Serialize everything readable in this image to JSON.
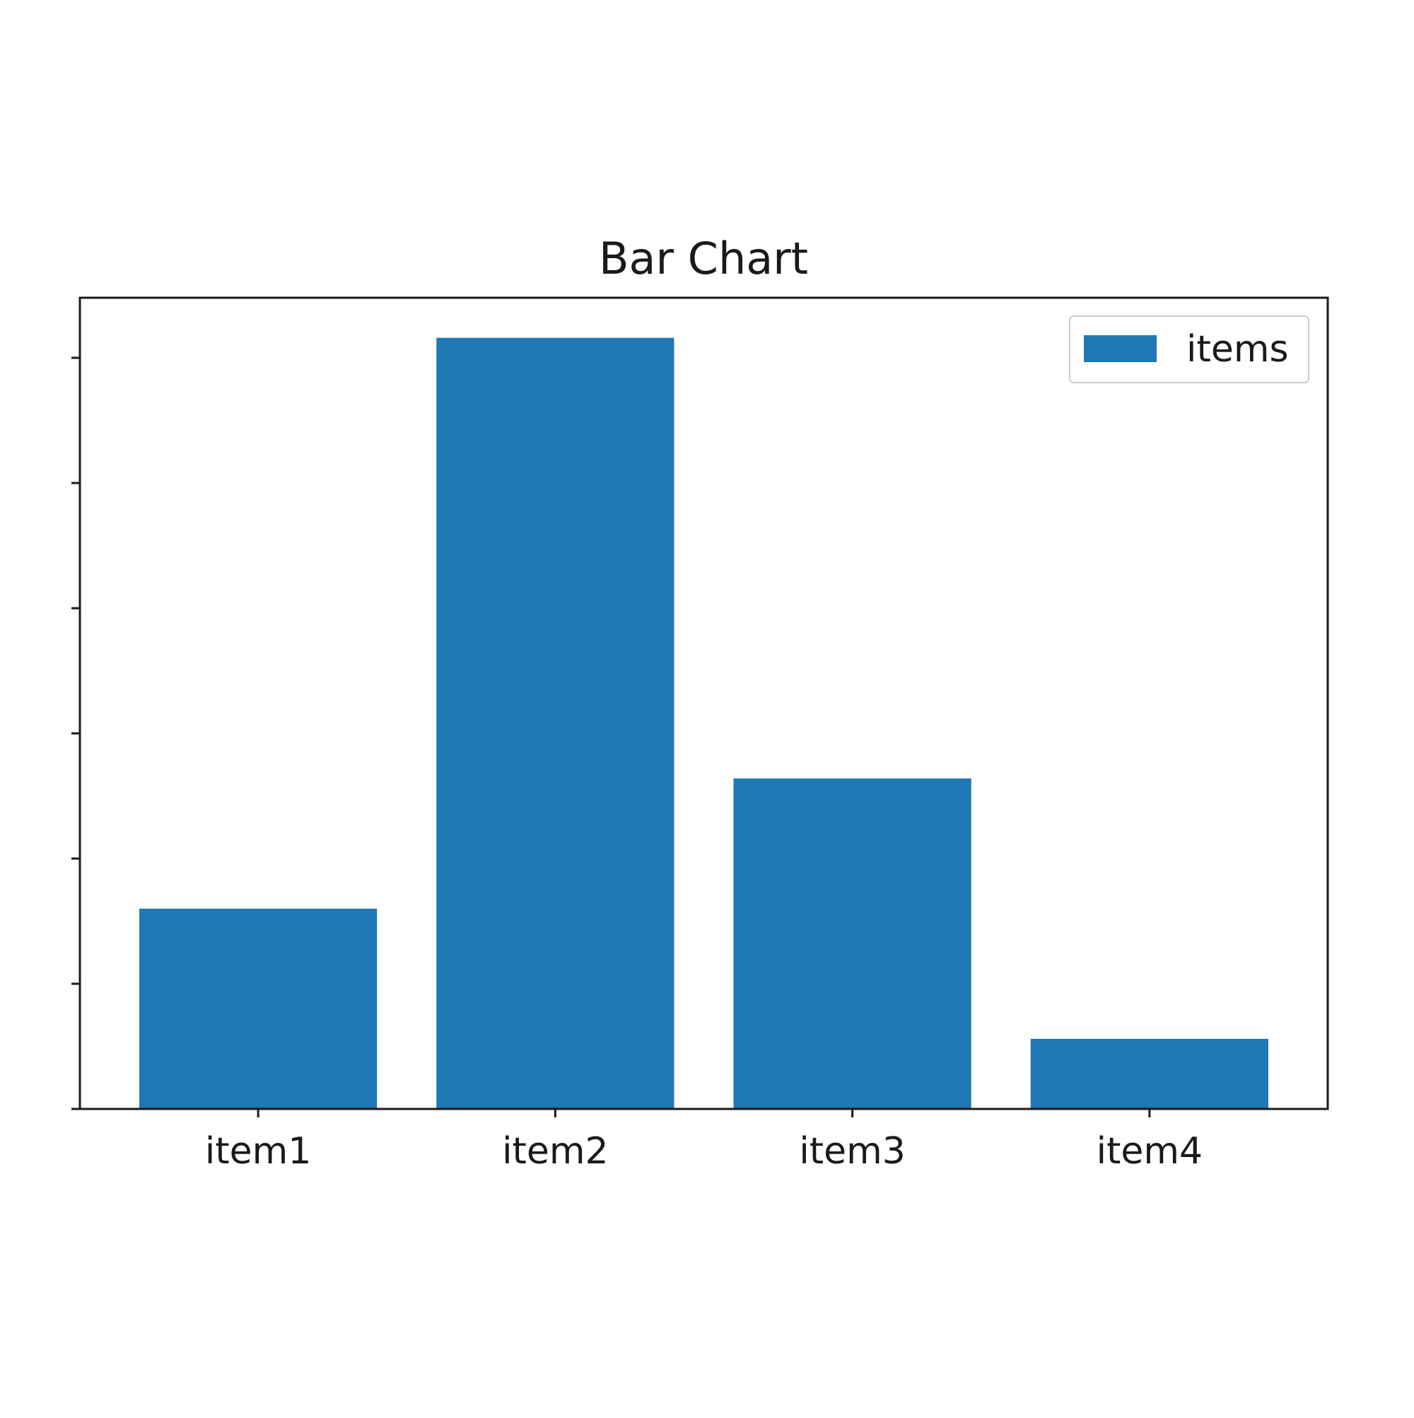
{
  "chart_data": {
    "type": "bar",
    "title": "Bar Chart",
    "xlabel": "",
    "ylabel": "",
    "categories": [
      "item1",
      "item2",
      "item3",
      "item4"
    ],
    "series": [
      {
        "name": "items",
        "values": [
          0.8,
          3.08,
          1.32,
          0.28
        ]
      }
    ],
    "ylim": [
      0,
      3.24
    ],
    "y_ticks": [
      0,
      0.5,
      1.0,
      1.5,
      2.0,
      2.5,
      3.0
    ],
    "grid": false,
    "legend": {
      "position": "top-right"
    },
    "colors": {
      "bar": "#1f77b4",
      "axis": "#1a1a1a",
      "legend_border": "#cccccc"
    }
  }
}
